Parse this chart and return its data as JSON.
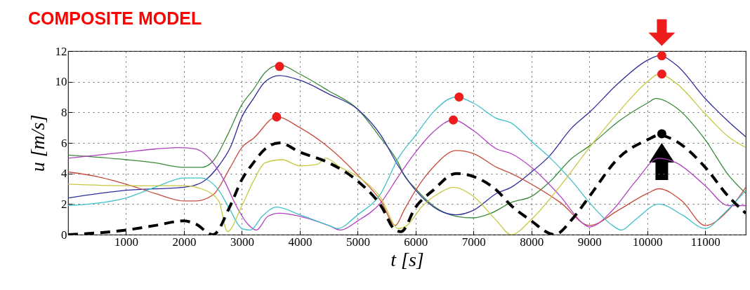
{
  "chart_data": {
    "type": "line",
    "title": "COMPOSITE MODEL",
    "xlabel": "t [s]",
    "ylabel": "u [m/s]",
    "xlim": [
      0,
      11700
    ],
    "xticks": [
      1000,
      2000,
      3000,
      4000,
      5000,
      6000,
      7000,
      8000,
      9000,
      10000,
      11000
    ],
    "ylim": [
      0,
      12
    ],
    "yticks": [
      0,
      2,
      4,
      6,
      8,
      10,
      12
    ],
    "grid": true,
    "series": [
      {
        "color": "#3a8a3a",
        "x": [
          0,
          1000,
          1500,
          2000,
          2300,
          2500,
          2750,
          3000,
          3200,
          3400,
          3650,
          4000,
          4500,
          5000,
          5400,
          5700,
          5800,
          6000,
          6300,
          6700,
          7000,
          7300,
          7650,
          8000,
          8300,
          8700,
          9000,
          9500,
          10000,
          10150,
          10500,
          11000,
          11400,
          11700
        ],
        "values": [
          5.2,
          4.9,
          4.7,
          4.4,
          4.4,
          4.8,
          6.5,
          8.5,
          9.5,
          10.6,
          11.1,
          10.5,
          9.4,
          8.2,
          6.3,
          4.7,
          3.9,
          3.0,
          1.9,
          1.2,
          1.1,
          1.4,
          2.1,
          2.5,
          3.4,
          5.0,
          5.8,
          7.4,
          8.6,
          8.9,
          8.3,
          6.2,
          3.9,
          2.7
        ]
      },
      {
        "color": "#2c2c9c",
        "x": [
          0,
          1000,
          2000,
          2300,
          2600,
          2800,
          3000,
          3200,
          3400,
          3650,
          4000,
          4500,
          5000,
          5400,
          5700,
          6000,
          6400,
          6700,
          7000,
          7400,
          7650,
          8000,
          8300,
          8700,
          9000,
          9500,
          10000,
          10200,
          10500,
          11000,
          11400,
          11700
        ],
        "values": [
          2.4,
          2.9,
          3.1,
          3.4,
          4.5,
          5.7,
          7.7,
          8.9,
          10.0,
          10.4,
          10.1,
          9.2,
          8.2,
          6.5,
          4.5,
          2.9,
          1.6,
          1.3,
          1.6,
          2.7,
          3.1,
          4.1,
          5.1,
          7.0,
          8.0,
          9.9,
          11.4,
          11.7,
          11.1,
          8.9,
          7.4,
          6.4
        ]
      },
      {
        "color": "#c84a3a",
        "x": [
          0,
          500,
          1000,
          1500,
          2000,
          2200,
          2500,
          2800,
          3000,
          3200,
          3600,
          4000,
          4500,
          5000,
          5400,
          5650,
          5800,
          6000,
          6300,
          6700,
          7000,
          7400,
          7650,
          8000,
          8500,
          9000,
          9500,
          10000,
          10200,
          10600,
          11000,
          11400,
          11700
        ],
        "values": [
          4.1,
          3.8,
          3.3,
          2.7,
          2.2,
          2.2,
          2.6,
          4.4,
          5.7,
          6.3,
          7.7,
          7.0,
          5.7,
          3.9,
          2.2,
          0.6,
          1.6,
          2.9,
          4.4,
          5.5,
          5.3,
          4.4,
          4.0,
          3.3,
          2.1,
          0.6,
          1.6,
          2.7,
          3.0,
          2.2,
          0.6,
          1.6,
          3.1
        ]
      },
      {
        "color": "#b040c0",
        "x": [
          0,
          1000,
          1500,
          1900,
          2200,
          2500,
          2700,
          2900,
          3100,
          3250,
          3450,
          3650,
          4000,
          4500,
          4700,
          5000,
          5400,
          5700,
          6000,
          6300,
          6650,
          7000,
          7400,
          7650,
          8000,
          8500,
          8900,
          9000,
          9400,
          9800,
          10200,
          10500,
          11000,
          11400,
          11700
        ],
        "values": [
          5.0,
          5.4,
          5.6,
          5.7,
          5.6,
          4.7,
          3.5,
          1.9,
          0.7,
          0.3,
          1.2,
          1.4,
          1.2,
          0.6,
          0.3,
          0.9,
          2.1,
          3.8,
          5.4,
          6.7,
          7.5,
          6.8,
          5.6,
          5.3,
          4.4,
          2.5,
          0.7,
          0.5,
          1.6,
          3.5,
          5.0,
          4.7,
          3.2,
          1.9,
          1.9
        ]
      },
      {
        "color": "#40c0c8",
        "x": [
          0,
          1000,
          1500,
          2000,
          2300,
          2600,
          2800,
          3000,
          3150,
          3350,
          3600,
          4000,
          4500,
          4650,
          5000,
          5400,
          5700,
          6000,
          6300,
          6700,
          7000,
          7400,
          7650,
          8000,
          8300,
          8700,
          9000,
          9400,
          9550,
          9800,
          10200,
          10600,
          11000,
          11300,
          11700
        ],
        "values": [
          1.9,
          2.4,
          3.1,
          3.7,
          3.7,
          2.9,
          1.6,
          0.4,
          0.3,
          1.2,
          1.8,
          1.3,
          0.6,
          0.4,
          1.3,
          2.7,
          5.0,
          6.5,
          8.0,
          9.0,
          8.6,
          7.6,
          7.3,
          6.1,
          5.1,
          3.5,
          2.1,
          0.6,
          0.3,
          1.0,
          2.0,
          1.3,
          0.4,
          1.3,
          2.9
        ]
      },
      {
        "color": "#c8c840",
        "x": [
          0,
          1000,
          2000,
          2300,
          2600,
          2750,
          3000,
          3200,
          3400,
          3700,
          4000,
          4300,
          4450,
          4700,
          5000,
          5400,
          5700,
          5850,
          6100,
          6400,
          6650,
          7000,
          7400,
          7650,
          8000,
          8500,
          9000,
          9500,
          10000,
          10200,
          10500,
          11000,
          11400,
          11700
        ],
        "values": [
          3.3,
          3.2,
          3.2,
          3.0,
          2.2,
          0.2,
          1.9,
          3.5,
          4.7,
          4.9,
          4.5,
          4.6,
          5.0,
          4.4,
          3.8,
          2.4,
          0.4,
          0.6,
          1.8,
          2.7,
          3.1,
          2.5,
          0.9,
          0.0,
          1.0,
          3.2,
          5.7,
          8.0,
          10.0,
          10.5,
          9.9,
          7.9,
          6.4,
          5.7
        ]
      },
      {
        "color": "#000000",
        "line_style": "dashed",
        "x": [
          0,
          1000,
          1500,
          2000,
          2200,
          2500,
          2800,
          3000,
          3200,
          3400,
          3650,
          4000,
          4500,
          5000,
          5400,
          5650,
          5750,
          6000,
          6300,
          6700,
          7000,
          7400,
          7650,
          8000,
          8300,
          8400,
          8700,
          9000,
          9500,
          10000,
          10200,
          10500,
          11000,
          11400,
          11700
        ],
        "values": [
          0,
          0.3,
          0.6,
          0.9,
          0.7,
          0,
          1.9,
          3.6,
          4.7,
          5.6,
          6.0,
          5.4,
          4.7,
          3.5,
          1.9,
          0.3,
          0.2,
          1.8,
          2.9,
          4.0,
          3.8,
          2.9,
          1.9,
          0.9,
          0.1,
          0,
          1.0,
          2.5,
          5.0,
          6.2,
          6.5,
          6.1,
          4.4,
          2.5,
          1.4
        ]
      },
      {
        "type": "scatter",
        "marker": "circle",
        "color": "#ee1c1c",
        "x": [
          3650,
          3600,
          6750,
          6650,
          10250,
          10250
        ],
        "values": [
          11.0,
          7.7,
          9.0,
          7.5,
          11.7,
          10.5
        ]
      },
      {
        "type": "scatter",
        "marker": "circle",
        "color": "#000000",
        "x": [
          10250
        ],
        "values": [
          6.6
        ]
      }
    ]
  }
}
